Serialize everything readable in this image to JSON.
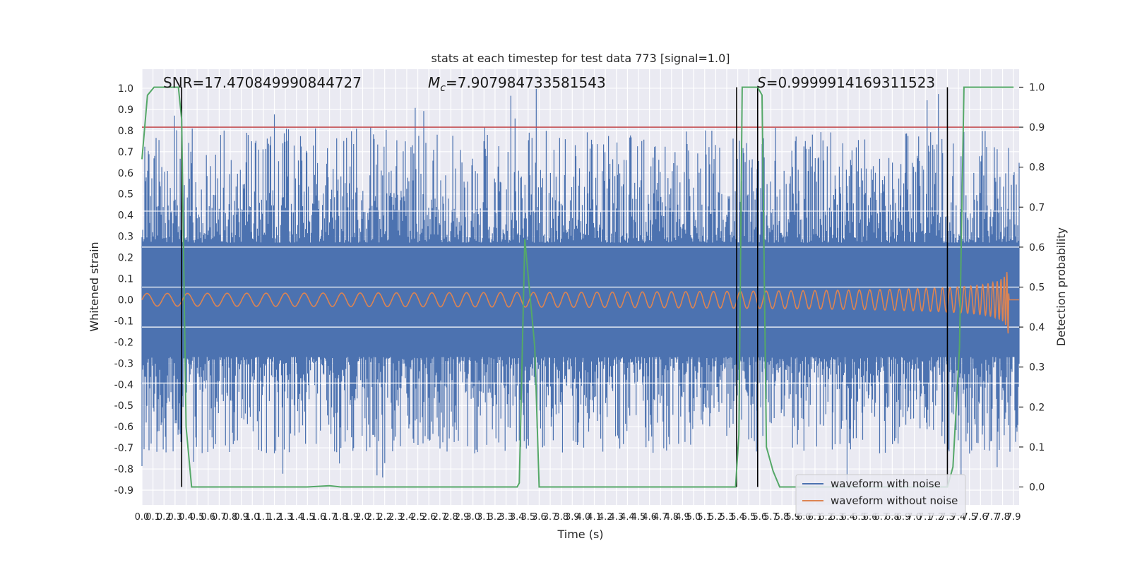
{
  "chart_data": {
    "type": "line",
    "title": "stats at each timestep for test data 773 [signal=1.0]",
    "xlabel": "Time (s)",
    "ylabel": "Whitened strain",
    "y2label": "Detection probability",
    "xlim": [
      0.0,
      7.95
    ],
    "ylim": [
      -0.97,
      1.09
    ],
    "y2lim": [
      -0.045,
      1.045
    ],
    "grid": true,
    "x_ticks": [
      0.0,
      0.1,
      0.2,
      0.3,
      0.4,
      0.5,
      0.6,
      0.7,
      0.8,
      0.9,
      1.0,
      1.1,
      1.2,
      1.3,
      1.4,
      1.5,
      1.6,
      1.7,
      1.8,
      1.9,
      2.0,
      2.1,
      2.2,
      2.3,
      2.4,
      2.5,
      2.6,
      2.7,
      2.8,
      2.9,
      3.0,
      3.1,
      3.2,
      3.3,
      3.4,
      3.5,
      3.6,
      3.7,
      3.8,
      3.9,
      4.0,
      4.1,
      4.2,
      4.3,
      4.4,
      4.5,
      4.6,
      4.7,
      4.8,
      4.9,
      5.0,
      5.1,
      5.2,
      5.3,
      5.4,
      5.5,
      5.6,
      5.7,
      5.8,
      5.9,
      6.0,
      6.1,
      6.2,
      6.3,
      6.4,
      6.5,
      6.6,
      6.7,
      6.8,
      6.9,
      7.0,
      7.1,
      7.2,
      7.3,
      7.4,
      7.5,
      7.6,
      7.7,
      7.8,
      7.9
    ],
    "y_ticks": [
      -0.9,
      -0.8,
      -0.7,
      -0.6,
      -0.5,
      -0.4,
      -0.3,
      -0.2,
      -0.1,
      0.0,
      0.1,
      0.2,
      0.3,
      0.4,
      0.5,
      0.6,
      0.7,
      0.8,
      0.9,
      1.0
    ],
    "y2_ticks": [
      0.0,
      0.1,
      0.2,
      0.3,
      0.4,
      0.5,
      0.6,
      0.7,
      0.8,
      0.9,
      1.0
    ],
    "annotations": {
      "snr": "SNR=17.470849990844727",
      "mc_symbol": "M",
      "mc_sub": "c",
      "mc_value": "=7.907984733581543",
      "s_symbol": "S",
      "s_value": "=0.9999914169311523"
    },
    "series": [
      {
        "name": "waveform with noise",
        "color": "#4c72b0"
      },
      {
        "name": "waveform without noise",
        "color": "#dd8452"
      }
    ],
    "noise_envelope": {
      "band": [
        -0.27,
        0.27
      ],
      "spike_extent": [
        -0.88,
        1.0
      ]
    },
    "clean_waveform": {
      "t_start": 0.0,
      "t_merger": 7.86,
      "amp_start": 0.03,
      "amp_peak": 0.39,
      "f_start": 30,
      "f_end": 250
    },
    "detection_probability": {
      "color": "#55a868",
      "x": [
        0.0,
        0.05,
        0.11,
        0.22,
        0.33,
        0.36,
        0.4,
        0.45,
        1.5,
        1.7,
        1.8,
        3.4,
        3.42,
        3.47,
        3.56,
        3.6,
        5.38,
        5.41,
        5.44,
        5.5,
        5.58,
        5.62,
        5.66,
        5.72,
        5.78,
        7.3,
        7.35,
        7.41,
        7.45,
        7.9
      ],
      "y": [
        0.82,
        0.98,
        1.0,
        1.0,
        1.0,
        0.92,
        0.15,
        0.0,
        0.0,
        0.003,
        0.0,
        0.0,
        0.01,
        0.62,
        0.35,
        0.0,
        0.0,
        0.13,
        1.0,
        1.0,
        1.0,
        0.98,
        0.1,
        0.04,
        0.0,
        0.0,
        0.05,
        0.35,
        1.0,
        1.0
      ]
    },
    "threshold": {
      "y2": 0.9,
      "color": "#c44e52"
    },
    "vertical_markers": {
      "x": [
        0.36,
        5.39,
        5.58,
        7.3
      ],
      "color": "#000000"
    },
    "legend": {
      "placement": "lower-right"
    }
  }
}
